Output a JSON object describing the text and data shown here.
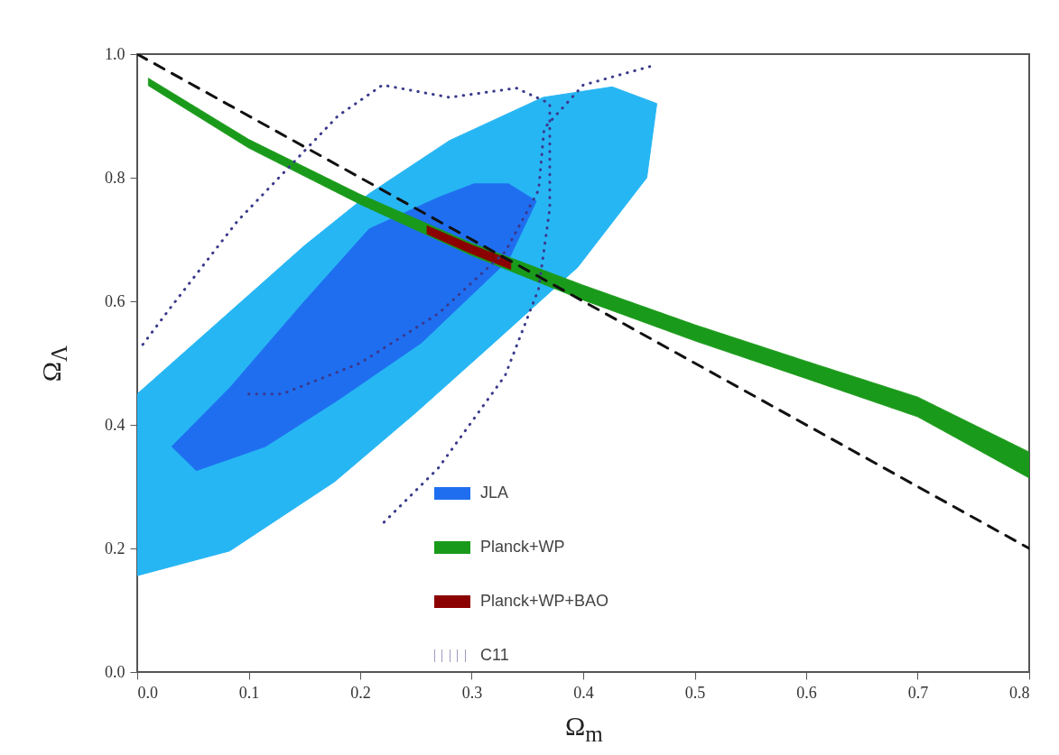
{
  "chart_data": {
    "type": "line",
    "xlabel": "Ω$_{m}$",
    "ylabel": "Ω$_{Λ}$",
    "xlim": [
      0,
      0.8
    ],
    "ylim": [
      0,
      1
    ],
    "xticks": [
      {
        "value": 0,
        "label": "0.0"
      },
      0.1,
      0.2,
      0.3,
      0.4,
      0.5,
      0.6,
      0.7,
      0.8
    ],
    "yticks": [
      {
        "value": 0,
        "label": "0.0"
      },
      0.2,
      0.4,
      0.6,
      0.8,
      {
        "value": 1,
        "label": "1.0"
      }
    ],
    "grid": false,
    "legend": "bottom",
    "series": [
      {
        "type": "area",
        "color": "#27b6f4",
        "x": [
          0,
          0,
          0.05,
          0.1,
          0.15,
          0.208,
          0.28,
          0.364,
          0.426,
          0.466,
          0.457,
          0.395,
          0.32,
          0.25,
          0.177,
          0.083
        ],
        "values": [
          0.156,
          0.45,
          0.53,
          0.61,
          0.69,
          0.774,
          0.86,
          0.93,
          0.947,
          0.92,
          0.8,
          0.655,
          0.533,
          0.42,
          0.308,
          0.196
        ]
      },
      {
        "name": "JLA",
        "type": "area",
        "color": "#1f6ef0",
        "x": [
          0.031,
          0.083,
          0.15,
          0.208,
          0.27,
          0.302,
          0.333,
          0.358,
          0.333,
          0.255,
          0.18,
          0.115,
          0.053
        ],
        "values": [
          0.365,
          0.46,
          0.6,
          0.717,
          0.768,
          0.79,
          0.79,
          0.762,
          0.667,
          0.533,
          0.44,
          0.365,
          0.326
        ]
      },
      {
        "name": "Planck+WP",
        "type": "area",
        "color": "#1a9a1a",
        "x": [
          0.01,
          0.1,
          0.2,
          0.3,
          0.4,
          0.5,
          0.6,
          0.7,
          0.8,
          0.8,
          0.7,
          0.6,
          0.5,
          0.4,
          0.3,
          0.2,
          0.1,
          0.01
        ],
        "values": [
          0.961,
          0.862,
          0.773,
          0.694,
          0.626,
          0.562,
          0.503,
          0.445,
          0.356,
          0.314,
          0.413,
          0.475,
          0.536,
          0.602,
          0.674,
          0.757,
          0.848,
          0.949
        ]
      },
      {
        "name": "Planck+WP+BAO",
        "type": "area",
        "color": "#8b0000",
        "x": [
          0.26,
          0.3,
          0.335,
          0.335,
          0.3,
          0.26
        ],
        "values": [
          0.722,
          0.691,
          0.667,
          0.652,
          0.677,
          0.709
        ]
      },
      {
        "name": "C11",
        "color": "#3a3a8c",
        "line_style": "dotted",
        "x": [
          0.005,
          0.03,
          0.09,
          0.18,
          0.22,
          0.28,
          0.34,
          0.37,
          0.37,
          0.36,
          0.33,
          0.27,
          0.22
        ],
        "values": [
          0.53,
          0.59,
          0.73,
          0.9,
          0.95,
          0.93,
          0.945,
          0.92,
          0.75,
          0.62,
          0.48,
          0.33,
          0.24
        ]
      },
      {
        "color": "#3a3a8c",
        "line_style": "dotted",
        "x": [
          0.1,
          0.13,
          0.2,
          0.27,
          0.33,
          0.36,
          0.365,
          0.4,
          0.46
        ],
        "values": [
          0.45,
          0.45,
          0.5,
          0.58,
          0.68,
          0.78,
          0.88,
          0.95,
          0.98
        ]
      },
      {
        "color": "#111111",
        "line_style": "dashed",
        "x": [
          0,
          0.8
        ],
        "values": [
          1,
          0.2
        ]
      }
    ]
  }
}
